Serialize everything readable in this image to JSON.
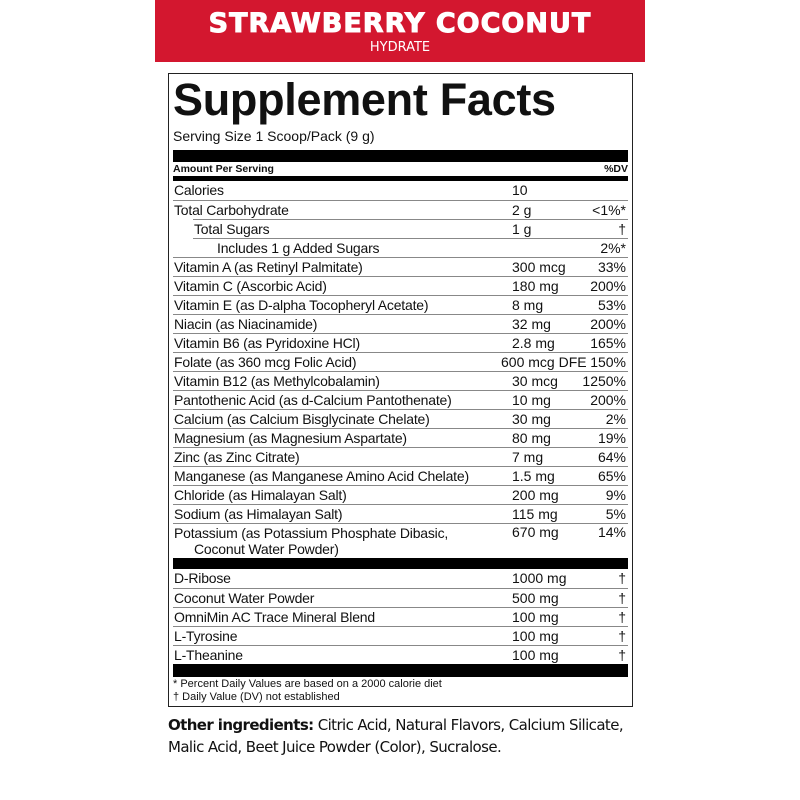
{
  "banner": {
    "title": "STRAWBERRY COCONUT",
    "subtitle": "HYDRATE",
    "color": "#d3172f"
  },
  "facts": {
    "title": "Supplement Facts",
    "serving": "Serving Size 1 Scoop/Pack (9 g)",
    "header_left": "Amount Per Serving",
    "header_right": "%DV",
    "rows": [
      {
        "name": "Calories",
        "amount": "10",
        "dv": ""
      },
      {
        "name": "Total Carbohydrate",
        "amount": "2 g",
        "dv": "<1%*"
      },
      {
        "name": "Total Sugars",
        "amount": "1 g",
        "dv": "†",
        "indent": 1
      },
      {
        "name": "Includes 1 g Added Sugars",
        "amount": "",
        "dv": "2%*",
        "indent": 2
      },
      {
        "name": "Vitamin A (as Retinyl Palmitate)",
        "amount": "300 mcg",
        "dv": "33%"
      },
      {
        "name": "Vitamin C (Ascorbic Acid)",
        "amount": "180 mg",
        "dv": "200%"
      },
      {
        "name": "Vitamin E (as D-alpha Tocopheryl Acetate)",
        "amount": "8 mg",
        "dv": "53%"
      },
      {
        "name": "Niacin (as Niacinamide)",
        "amount": "32 mg",
        "dv": "200%"
      },
      {
        "name": "Vitamin B6 (as Pyridoxine HCl)",
        "amount": "2.8 mg",
        "dv": "165%"
      },
      {
        "name": "Folate (as 360 mcg Folic Acid)",
        "amount": "600 mcg DFE",
        "dv": "150%"
      },
      {
        "name": "Vitamin B12 (as Methylcobalamin)",
        "amount": "30 mcg",
        "dv": "1250%"
      },
      {
        "name": "Pantothenic Acid (as d-Calcium Pantothenate)",
        "amount": "10 mg",
        "dv": "200%"
      },
      {
        "name": "Calcium (as Calcium Bisglycinate Chelate)",
        "amount": "30 mg",
        "dv": "2%"
      },
      {
        "name": "Magnesium (as Magnesium Aspartate)",
        "amount": "80 mg",
        "dv": "19%"
      },
      {
        "name": "Zinc (as Zinc Citrate)",
        "amount": "7 mg",
        "dv": "64%"
      },
      {
        "name": "Manganese (as Manganese Amino Acid Chelate)",
        "amount": "1.5 mg",
        "dv": "65%"
      },
      {
        "name": "Chloride (as Himalayan Salt)",
        "amount": "200 mg",
        "dv": "9%"
      },
      {
        "name": "Sodium (as Himalayan Salt)",
        "amount": "115 mg",
        "dv": "5%"
      },
      {
        "name": "Potassium (as Potassium Phosphate Dibasic,",
        "name2": "Coconut Water Powder)",
        "amount": "670 mg",
        "dv": "14%"
      }
    ],
    "rows2": [
      {
        "name": "D-Ribose",
        "amount": "1000 mg",
        "dv": "†"
      },
      {
        "name": "Coconut Water Powder",
        "amount": "500 mg",
        "dv": "†"
      },
      {
        "name": "OmniMin AC Trace Mineral Blend",
        "amount": "100 mg",
        "dv": "†"
      },
      {
        "name": "L-Tyrosine",
        "amount": "100 mg",
        "dv": "†"
      },
      {
        "name": "L-Theanine",
        "amount": "100 mg",
        "dv": "†"
      }
    ],
    "footnote1": "* Percent Daily Values are based on a 2000 calorie diet",
    "footnote2": "† Daily Value (DV) not established"
  },
  "other": {
    "label": "Other ingredients:",
    "text": " Citric Acid, Natural Flavors, Calcium Silicate, Malic Acid, Beet Juice Powder (Color), Sucralose."
  }
}
